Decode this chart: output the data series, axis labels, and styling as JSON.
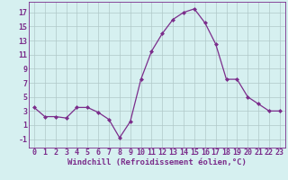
{
  "x": [
    0,
    1,
    2,
    3,
    4,
    5,
    6,
    7,
    8,
    9,
    10,
    11,
    12,
    13,
    14,
    15,
    16,
    17,
    18,
    19,
    20,
    21,
    22,
    23
  ],
  "y": [
    3.5,
    2.2,
    2.2,
    2.0,
    3.5,
    3.5,
    2.8,
    1.8,
    -0.8,
    1.5,
    7.5,
    11.5,
    14.0,
    16.0,
    17.0,
    17.5,
    15.5,
    12.5,
    7.5,
    7.5,
    5.0,
    4.0,
    3.0,
    3.0
  ],
  "line_color": "#7b2d8b",
  "marker": "D",
  "marker_size": 2.0,
  "bg_color": "#d6f0f0",
  "grid_color": "#b0c8c8",
  "xlabel": "Windchill (Refroidissement éolien,°C)",
  "xlabel_fontsize": 6.5,
  "xtick_labels": [
    "0",
    "1",
    "2",
    "3",
    "4",
    "5",
    "6",
    "7",
    "8",
    "9",
    "10",
    "11",
    "12",
    "13",
    "14",
    "15",
    "16",
    "17",
    "18",
    "19",
    "20",
    "21",
    "22",
    "23"
  ],
  "ytick_values": [
    -1,
    1,
    3,
    5,
    7,
    9,
    11,
    13,
    15,
    17
  ],
  "ylim": [
    -2.2,
    18.5
  ],
  "xlim": [
    -0.5,
    23.5
  ],
  "tick_fontsize": 6.0
}
